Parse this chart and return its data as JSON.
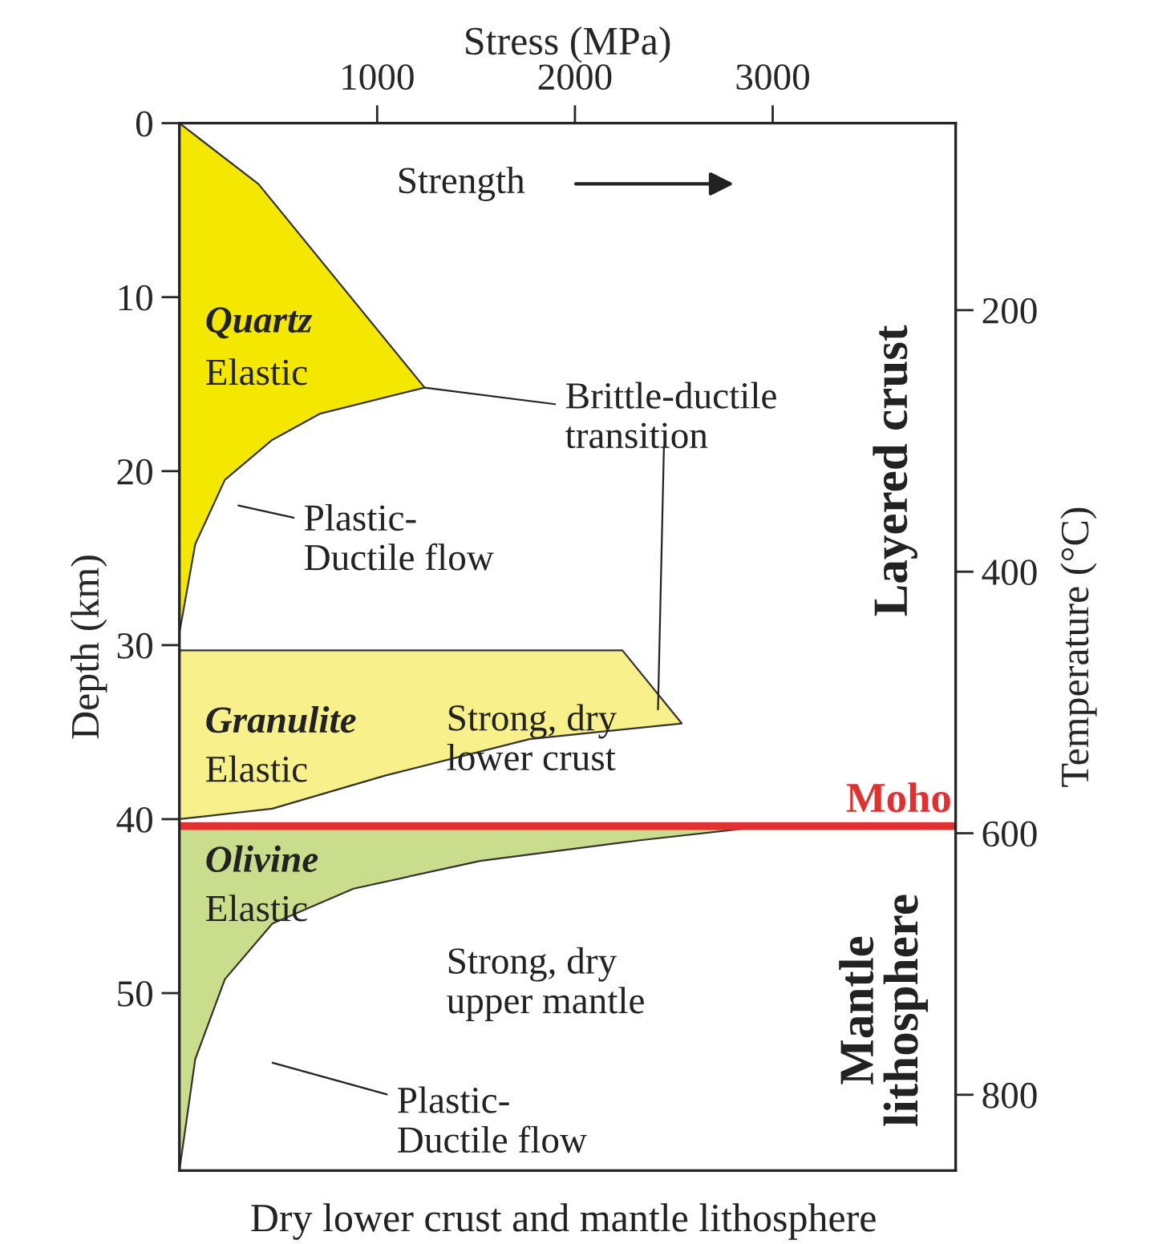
{
  "chart_data": {
    "type": "area",
    "orientation": "horizontal",
    "title": "Dry lower crust and mantle lithosphere",
    "xlabel": "Stress (MPa)",
    "ylabel": "Depth (km)",
    "y2label": "Temperature (°C)",
    "xlim": [
      0,
      3925
    ],
    "xticks": [
      1000,
      2000,
      3000
    ],
    "ylim": [
      60.2,
      0
    ],
    "yticks": [
      0,
      10,
      20,
      30,
      40,
      50
    ],
    "y2lim": [
      858,
      57
    ],
    "y2ticks": [
      200,
      400,
      600,
      800
    ],
    "series": [
      {
        "color": "#f5e800",
        "x": [
          0,
          3.5,
          15.2,
          16.7,
          18.2,
          20.5,
          24.2,
          29.3
        ],
        "values": [
          0,
          400,
          1240,
          710,
          470,
          230,
          80,
          0
        ]
      },
      {
        "color": "#f8f08a",
        "x": [
          30.3,
          30.3,
          34.5,
          35.4,
          37.5,
          39.4,
          40.0
        ],
        "values": [
          0,
          2240,
          2540,
          1770,
          1040,
          470,
          0
        ]
      },
      {
        "color": "#c9dd8c",
        "x": [
          40.4,
          40.4,
          41.2,
          42.4,
          44,
          46,
          49.2,
          53.8,
          60.2
        ],
        "values": [
          0,
          2970,
          2340,
          1520,
          880,
          470,
          230,
          80,
          0
        ]
      }
    ],
    "ref_lines": [
      {
        "axis": "y",
        "value": 40.4,
        "label": "Moho",
        "color": "#e03030"
      }
    ],
    "annotations": [
      "Strength",
      "Quartz",
      "Elastic",
      {
        "text": "Brittle-ductile\ntransition",
        "x": 1240,
        "y": 15.2
      },
      "Plastic-\nDuctile flow",
      "Granulite",
      "Elastic",
      "Strong, dry\nlower crust",
      "Olivine",
      "Elastic",
      "Strong, dry\nupper mantle",
      "Plastic-\nDuctile flow",
      "Layered crust",
      "Mantle\nlithosphere"
    ]
  }
}
